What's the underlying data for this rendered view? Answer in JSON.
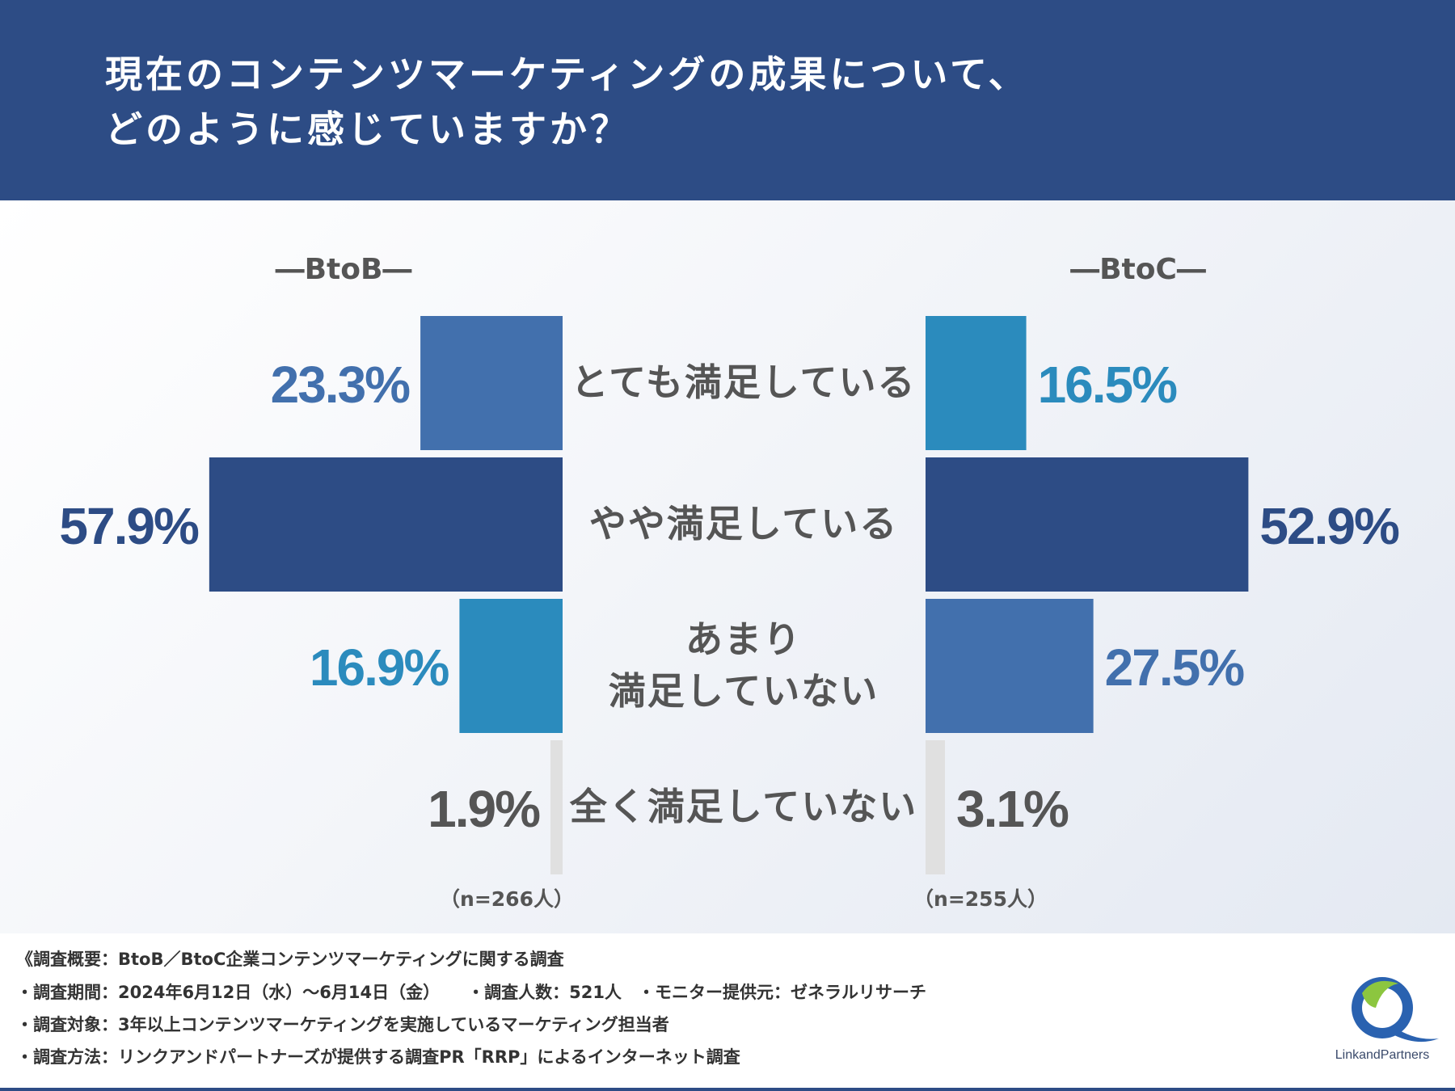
{
  "header": {
    "title_line1": "現在のコンテンツマーケティングの成果について、",
    "title_line2": "どのように感じていますか？"
  },
  "colors": {
    "header_bg": "#2d4c85",
    "very_satisfied": "#4270ad",
    "somewhat_satisfied": "#2d4c85",
    "not_very_satisfied_btob": "#2b8bbd",
    "not_very_satisfied_btoc": "#4270ad",
    "very_satisfied_btoc": "#2b8bbd",
    "not_at_all": "#e0e0e0",
    "label_text": "#555555"
  },
  "chart_data": {
    "type": "bar",
    "orientation": "horizontal-butterfly",
    "categories": [
      "とても満足している",
      "やや満足している",
      "あまり\n満足していない",
      "全く満足していない"
    ],
    "series": [
      {
        "name": "BtoB",
        "values": [
          23.3,
          57.9,
          16.9,
          1.9
        ],
        "labels": [
          "23.3%",
          "57.9%",
          "16.9%",
          "1.9%"
        ],
        "n": "（n=266人）"
      },
      {
        "name": "BtoC",
        "values": [
          16.5,
          52.9,
          27.5,
          3.1
        ],
        "labels": [
          "16.5%",
          "52.9%",
          "27.5%",
          "3.1%"
        ],
        "n": "（n=255人）"
      }
    ],
    "headers": [
      "―BtoB―",
      "―BtoC―"
    ],
    "unit": "%"
  },
  "footer": {
    "overview": "《調査概要：BtoB／BtoC企業コンテンツマーケティングに関する調査",
    "period": "・調査期間：2024年6月12日（水）〜6月14日（金）",
    "respondents": "・調査人数：521人",
    "provider": "・モニター提供元：ゼネラルリサーチ",
    "target": "・調査対象：3年以上コンテンツマーケティングを実施しているマーケティング担当者",
    "method": "・調査方法：リンクアンドパートナーズが提供する調査PR「RRP」によるインターネット調査"
  },
  "logo": {
    "text": "LinkandPartners"
  }
}
